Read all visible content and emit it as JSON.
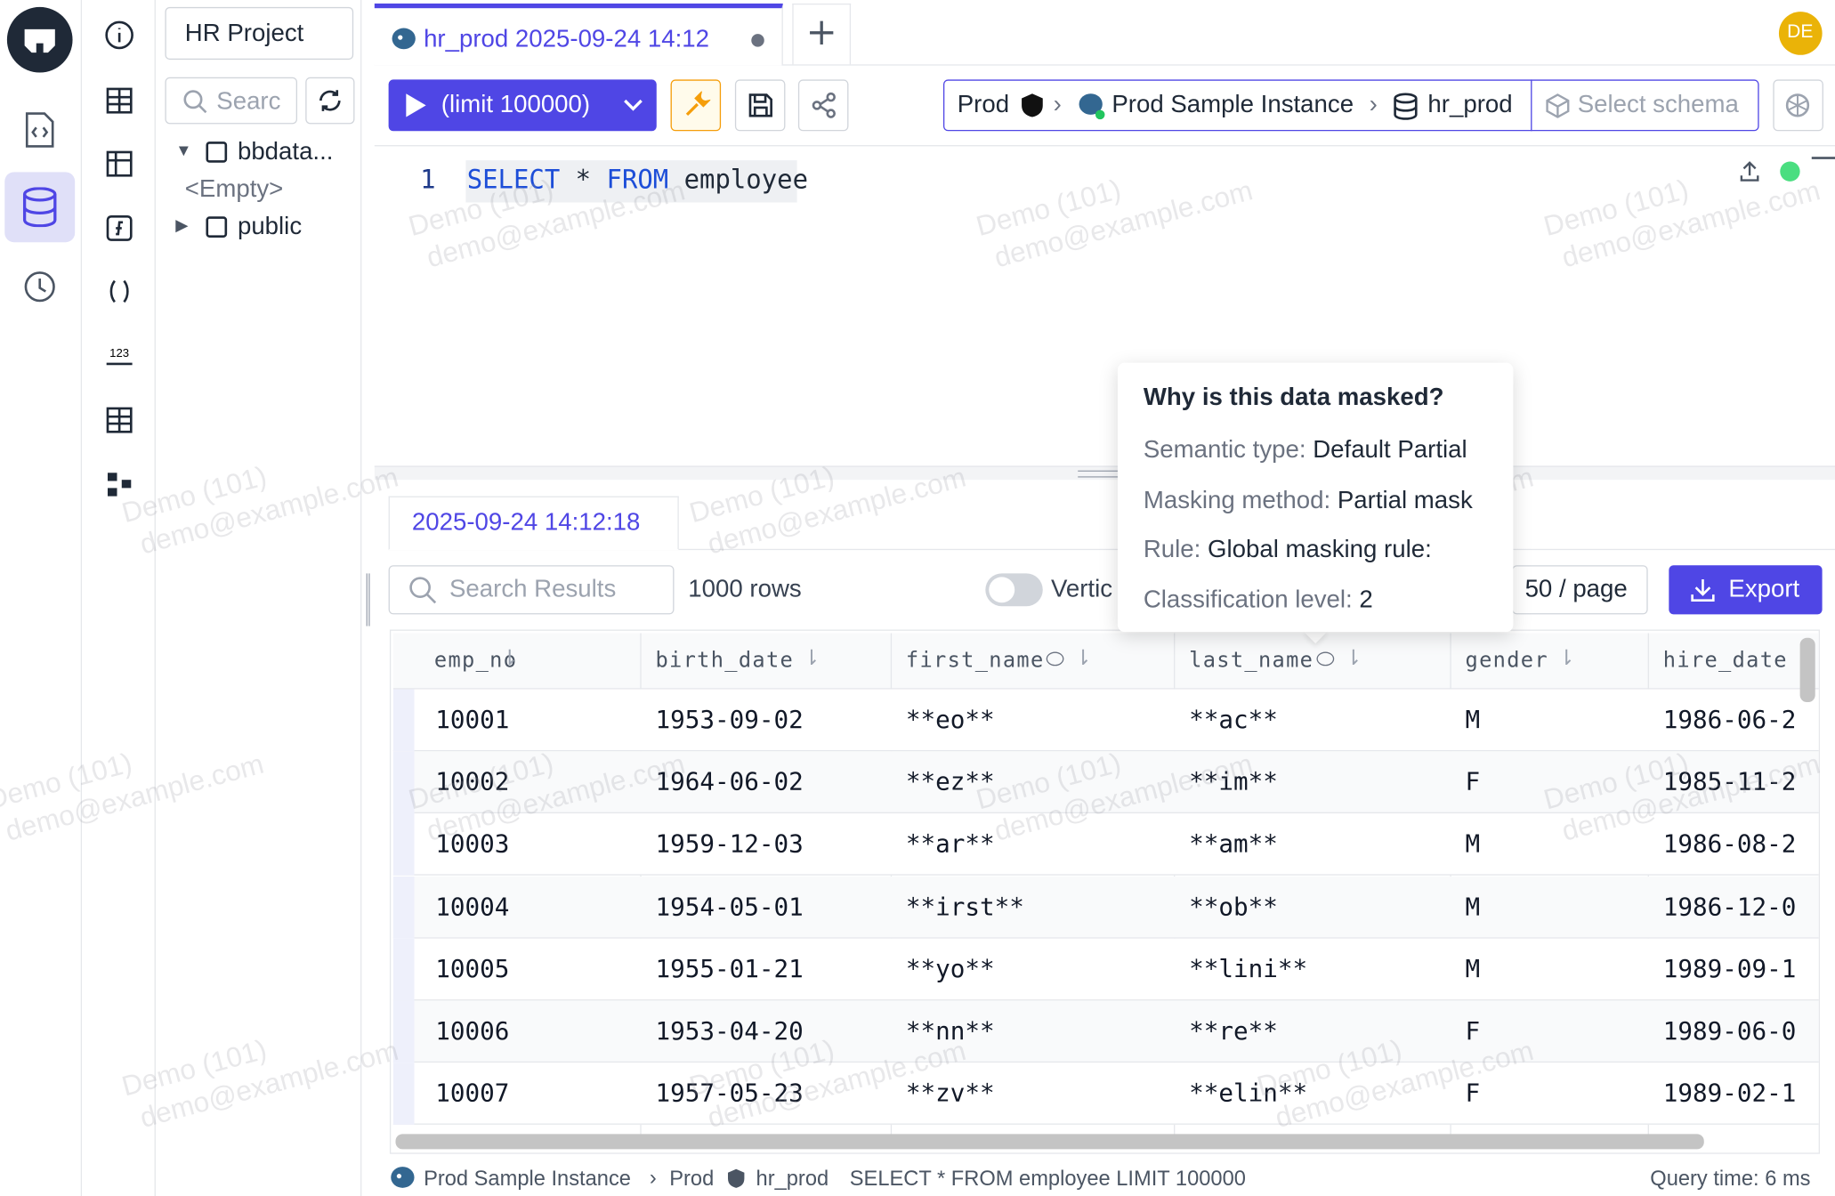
{
  "app": {
    "avatar": "DE"
  },
  "sidebar": {
    "project": "HR Project",
    "search_placeholder": "Searc",
    "tree": [
      {
        "label": "bbdata..."
      },
      {
        "label": "<Empty>"
      },
      {
        "label": "public"
      }
    ]
  },
  "tab": {
    "title": "hr_prod 2025-09-24 14:12"
  },
  "toolbar": {
    "run": "(limit 100000)",
    "breadcrumb": [
      "Prod",
      "Prod Sample Instance",
      "hr_prod"
    ],
    "schema_placeholder": "Select schema"
  },
  "editor": {
    "line_number": "1",
    "tokens": [
      "SELECT",
      "*",
      "FROM",
      "employee"
    ]
  },
  "watermark": {
    "name": "Demo (101)",
    "email": "demo@example.com"
  },
  "results": {
    "tab": "2025-09-24 14:12:18",
    "search_placeholder": "Search Results",
    "row_count": "1000 rows",
    "layout_toggle": "Vertic",
    "page_size": "50 / page",
    "export": "Export",
    "columns": [
      "emp_no",
      "birth_date",
      "first_name",
      "last_name",
      "gender",
      "hire_date"
    ],
    "rows": [
      [
        "10001",
        "1953-09-02",
        "**eo**",
        "**ac**",
        "M",
        "1986-06-2"
      ],
      [
        "10002",
        "1964-06-02",
        "**ez**",
        "**im**",
        "F",
        "1985-11-2"
      ],
      [
        "10003",
        "1959-12-03",
        "**ar**",
        "**am**",
        "M",
        "1986-08-2"
      ],
      [
        "10004",
        "1954-05-01",
        "**irst**",
        "**ob**",
        "M",
        "1986-12-0"
      ],
      [
        "10005",
        "1955-01-21",
        "**yo**",
        "**lini**",
        "M",
        "1989-09-1"
      ],
      [
        "10006",
        "1953-04-20",
        "**nn**",
        "**re**",
        "F",
        "1989-06-0"
      ],
      [
        "10007",
        "1957-05-23",
        "**zv**",
        "**elin**",
        "F",
        "1989-02-1"
      ]
    ]
  },
  "popup": {
    "title": "Why is this data masked?",
    "items": [
      {
        "label": "Semantic type:",
        "value": "Default Partial"
      },
      {
        "label": "Masking method:",
        "value": "Partial mask"
      },
      {
        "label": "Rule:",
        "value": "Global masking rule:"
      },
      {
        "label": "Classification level:",
        "value": "2"
      }
    ]
  },
  "status": {
    "instance": "Prod Sample Instance",
    "environment": "Prod",
    "database": "hr_prod",
    "statement": "SELECT * FROM employee LIMIT 100000",
    "query_time": "Query time: 6 ms"
  }
}
